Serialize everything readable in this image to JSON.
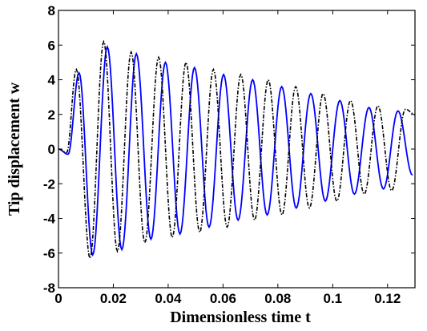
{
  "chart_data": {
    "type": "line",
    "title": "",
    "xlabel": "Dimensionless time t",
    "ylabel": "Tip displacement w",
    "xlim": [
      0,
      0.13
    ],
    "ylim": [
      -8,
      8
    ],
    "grid": false,
    "x_ticks": [
      0,
      0.02,
      0.04,
      0.06,
      0.08,
      0.1,
      0.12
    ],
    "x_tick_labels": [
      "0",
      "0.02",
      "0.04",
      "0.06",
      "0.08",
      "0.1",
      "0.12"
    ],
    "y_ticks": [
      -8,
      -6,
      -4,
      -2,
      0,
      2,
      4,
      6,
      8
    ],
    "y_tick_labels": [
      "-8",
      "-6",
      "-4",
      "-2",
      "0",
      "2",
      "4",
      "6",
      "8"
    ],
    "series": [
      {
        "style": "solid",
        "color": "#0000ff",
        "description_visual": "damped oscillation starting near 0, first peak ~4.4 at t~0.0075",
        "x": [
          0,
          0.0035,
          0.0075,
          0.0125,
          0.0178,
          0.0231,
          0.0284,
          0.0337,
          0.039,
          0.0443,
          0.0496,
          0.0549,
          0.0602,
          0.0655,
          0.0708,
          0.0761,
          0.0814,
          0.0867,
          0.092,
          0.0973,
          0.1026,
          0.1079,
          0.1132,
          0.1185,
          0.1238,
          0.1291
        ],
        "y": [
          0,
          -0.3,
          4.4,
          -6.1,
          5.9,
          -5.8,
          5.5,
          -5.2,
          5.0,
          -4.9,
          4.7,
          -4.5,
          4.3,
          -4.1,
          4.0,
          -3.8,
          3.6,
          -3.4,
          3.2,
          -3.0,
          2.8,
          -2.6,
          2.4,
          -2.3,
          2.2,
          -1.5
        ]
      },
      {
        "style": "dashdot",
        "color": "#000000",
        "description_visual": "damped oscillation slightly higher frequency and amplitude",
        "x": [
          0,
          0.003,
          0.0065,
          0.0115,
          0.0165,
          0.0215,
          0.0265,
          0.0315,
          0.0365,
          0.0415,
          0.0465,
          0.0515,
          0.0565,
          0.0615,
          0.0665,
          0.0715,
          0.0765,
          0.0815,
          0.0865,
          0.0915,
          0.0965,
          0.1015,
          0.1065,
          0.1115,
          0.1165,
          0.1215,
          0.1265,
          0.13
        ],
        "y": [
          0,
          -0.2,
          4.6,
          -6.3,
          6.2,
          -5.9,
          5.6,
          -5.4,
          5.3,
          -5.1,
          5.0,
          -4.8,
          4.6,
          -4.5,
          4.3,
          -4.1,
          4.0,
          -3.8,
          3.6,
          -3.4,
          3.2,
          -3.0,
          2.8,
          -2.6,
          2.5,
          -2.4,
          2.3,
          2.0
        ]
      }
    ]
  }
}
